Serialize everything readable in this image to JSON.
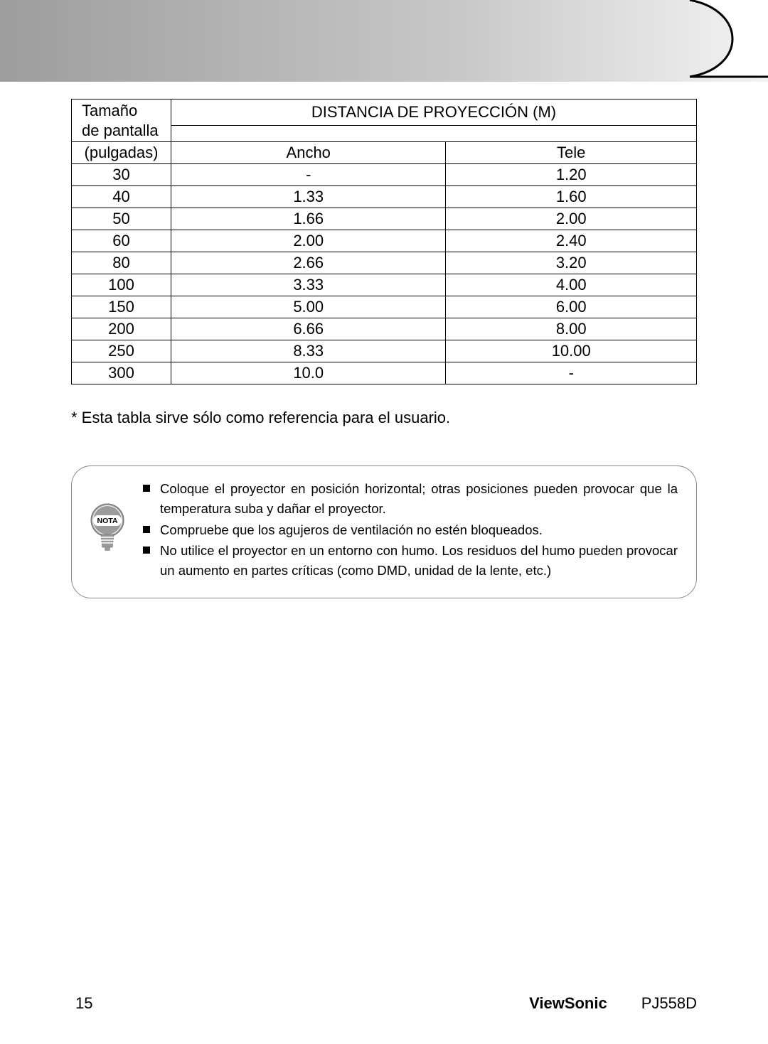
{
  "table": {
    "header": {
      "screen_size_line1": "Tamaño",
      "screen_size_line2": "de pantalla",
      "distance_title": "DISTANCIA DE PROYECCIÓN (M)",
      "inches": "(pulgadas)",
      "wide": "Ancho",
      "tele": "Tele"
    },
    "rows": [
      {
        "size": "30",
        "wide": "-",
        "tele": "1.20"
      },
      {
        "size": "40",
        "wide": "1.33",
        "tele": "1.60"
      },
      {
        "size": "50",
        "wide": "1.66",
        "tele": "2.00"
      },
      {
        "size": "60",
        "wide": "2.00",
        "tele": "2.40"
      },
      {
        "size": "80",
        "wide": "2.66",
        "tele": "3.20"
      },
      {
        "size": "100",
        "wide": "3.33",
        "tele": "4.00"
      },
      {
        "size": "150",
        "wide": "5.00",
        "tele": "6.00"
      },
      {
        "size": "200",
        "wide": "6.66",
        "tele": "8.00"
      },
      {
        "size": "250",
        "wide": "8.33",
        "tele": "10.00"
      },
      {
        "size": "300",
        "wide": "10.0",
        "tele": "-"
      }
    ]
  },
  "footnote": "* Esta tabla sirve sólo como referencia para el usuario.",
  "note_label": "NOTA",
  "notes": {
    "n0": "Coloque el proyector en posición horizontal; otras posiciones pueden provocar que la temperatura suba y dañar el proyector.",
    "n1": "Compruebe que los agujeros de ventilación no estén bloqueados.",
    "n2": "No utilice el proyector en un entorno con humo. Los residuos del humo pueden provocar un aumento en partes críticas (como DMD, unidad de la lente, etc.)"
  },
  "footer": {
    "page": "15",
    "brand": "ViewSonic",
    "model": "PJ558D"
  },
  "colors": {
    "border": "#000000",
    "note_border": "#888888",
    "bulb_fill": "#9b9b9b",
    "bulb_label_bg": "#ffffff"
  }
}
